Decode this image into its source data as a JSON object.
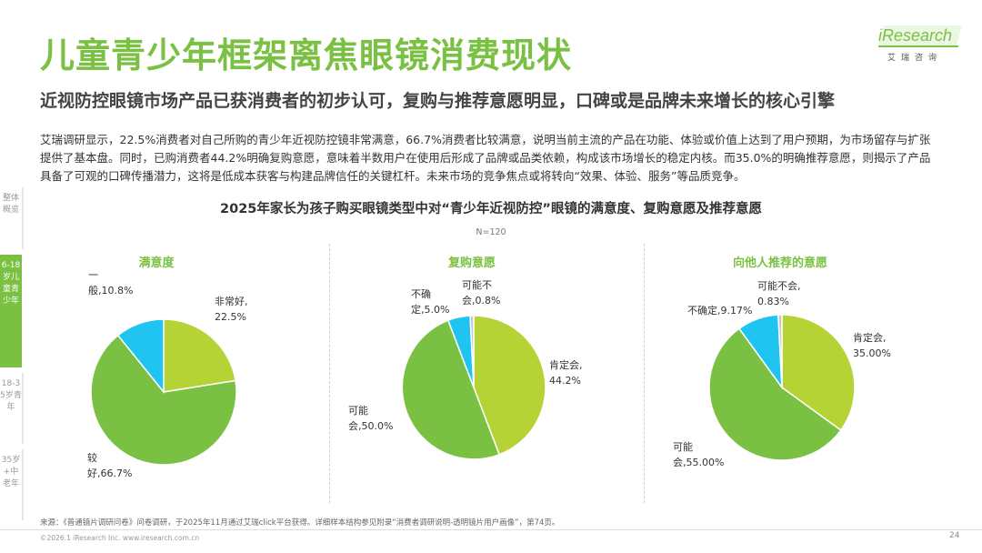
{
  "header": {
    "title": "儿童青少年框架离焦眼镜消费现状",
    "subtitle": "近视防控眼镜市场产品已获消费者的初步认可，复购与推荐意愿明显，口碑或是品牌未来增长的核心引擎"
  },
  "logo": {
    "text": "iResearch",
    "sub": "艾瑞咨询"
  },
  "body_text": "艾瑞调研显示，22.5%消费者对自己所购的青少年近视防控镜非常满意，66.7%消费者比较满意，说明当前主流的产品在功能、体验或价值上达到了用户预期，为市场留存与扩张提供了基本盘。同时，已购消费者44.2%明确复购意愿，意味着半数用户在使用后形成了品牌或品类依赖，构成该市场增长的稳定内核。而35.0%的明确推荐意愿，则揭示了产品具备了可观的口碑传播潜力，这将是低成本获客与构建品牌信任的关键杠杆。未来市场的竞争焦点或将转向“效果、体验、服务”等品质竞争。",
  "chart_title": "2025年家长为孩子购买眼镜类型中对“青少年近视防控”眼镜的满意度、复购意愿及推荐意愿",
  "sample_note": "N=120",
  "side_nav": [
    {
      "label": "整体概览",
      "active": false
    },
    {
      "label": "6-18岁儿童青少年",
      "active": true
    },
    {
      "label": "18-35岁青年",
      "active": false
    },
    {
      "label": "35岁+中老年",
      "active": false
    }
  ],
  "colors": {
    "dark_green": "#7ac143",
    "light_green": "#b5d334",
    "cyan": "#1fc4f1",
    "gray": "#c8c8c8"
  },
  "chart_data": [
    {
      "type": "pie",
      "title": "满意度",
      "slices": [
        {
          "name": "非常好",
          "value": 22.5,
          "label": "非常好,\n22.5%",
          "color": "#b5d334"
        },
        {
          "name": "较好",
          "value": 66.7,
          "label": "较\n好,66.7%",
          "color": "#7ac143"
        },
        {
          "name": "一般",
          "value": 10.8,
          "label": "一\n般,10.8%",
          "color": "#1fc4f1"
        }
      ]
    },
    {
      "type": "pie",
      "title": "复购意愿",
      "slices": [
        {
          "name": "肯定会",
          "value": 44.2,
          "label": "肯定会,\n44.2%",
          "color": "#b5d334"
        },
        {
          "name": "可能会",
          "value": 50.0,
          "label": "可能\n会,50.0%",
          "color": "#7ac143"
        },
        {
          "name": "不确定",
          "value": 5.0,
          "label": "不确\n定,5.0%",
          "color": "#1fc4f1"
        },
        {
          "name": "可能不会",
          "value": 0.8,
          "label": "可能不\n会,0.8%",
          "color": "#c8c8c8"
        }
      ]
    },
    {
      "type": "pie",
      "title": "向他人推荐的意愿",
      "slices": [
        {
          "name": "肯定会",
          "value": 35.0,
          "label": "肯定会,\n35.00%",
          "color": "#b5d334"
        },
        {
          "name": "可能会",
          "value": 55.0,
          "label": "可能\n会,55.00%",
          "color": "#7ac143"
        },
        {
          "name": "不确定",
          "value": 9.17,
          "label": "不确定,9.17%",
          "color": "#1fc4f1"
        },
        {
          "name": "可能不会",
          "value": 0.83,
          "label": "可能不会,\n0.83%",
          "color": "#c8c8c8"
        }
      ]
    }
  ],
  "footer": {
    "source": "来源：《普通镜片调研问卷》问卷调研，于2025年11月通过艾瑞click平台获得。详细样本结构参见附录“消费者调研说明-透明镜片用户画像”，第74页。",
    "copyright": "©2026.1 iResearch Inc.                    www.iresearch.com.cn",
    "page_number": "24"
  }
}
